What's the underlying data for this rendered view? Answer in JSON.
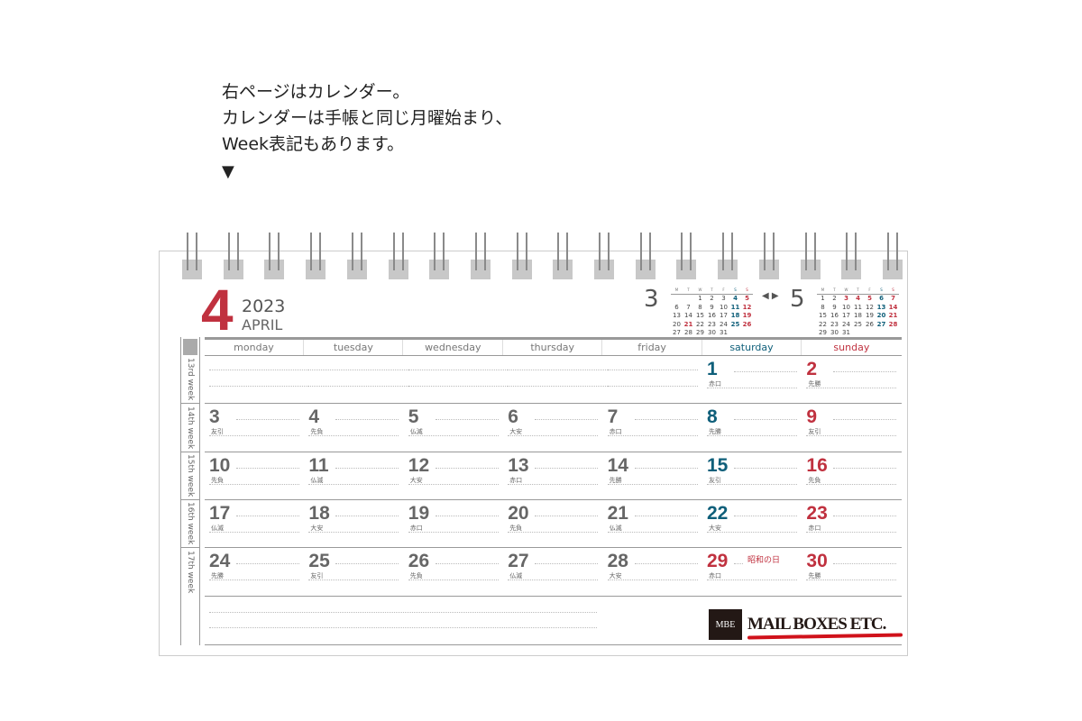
{
  "intro": {
    "lines": [
      "右ページはカレンダー。",
      "カレンダーは手帳と同じ月曜始まり、",
      "Week表記もあります。"
    ],
    "arrow": "▼"
  },
  "header": {
    "month": "4",
    "year": "2023",
    "month_name": "APRIL"
  },
  "colors": {
    "red": "#c0313f",
    "teal": "#0f5f7a",
    "gray": "#666666"
  },
  "mini": [
    {
      "month": "3",
      "days_head": [
        "M",
        "T",
        "W",
        "T",
        "F",
        "S",
        "S"
      ],
      "lead": 2,
      "count": 31,
      "sat": [
        4,
        11,
        18,
        25
      ],
      "red": [
        5,
        12,
        19,
        21,
        26
      ]
    },
    {
      "month": "5",
      "days_head": [
        "M",
        "T",
        "W",
        "T",
        "F",
        "S",
        "S"
      ],
      "lead": 0,
      "count": 31,
      "sat": [
        6,
        13,
        20,
        27
      ],
      "red": [
        3,
        4,
        5,
        7,
        14,
        21,
        28
      ]
    }
  ],
  "nav_arrows": "◀ ▶",
  "weekdays": [
    "monday",
    "tuesday",
    "wednesday",
    "thursday",
    "friday",
    "saturday",
    "sunday"
  ],
  "weeks": [
    "13rd week",
    "14th week",
    "15th week",
    "16th week",
    "17th week"
  ],
  "days": [
    {
      "d": "1",
      "r": "赤口"
    },
    {
      "d": "2",
      "r": "先勝"
    },
    {
      "d": "3",
      "r": "友引"
    },
    {
      "d": "4",
      "r": "先負"
    },
    {
      "d": "5",
      "r": "仏滅"
    },
    {
      "d": "6",
      "r": "大安"
    },
    {
      "d": "7",
      "r": "赤口"
    },
    {
      "d": "8",
      "r": "先勝"
    },
    {
      "d": "9",
      "r": "友引"
    },
    {
      "d": "10",
      "r": "先負"
    },
    {
      "d": "11",
      "r": "仏滅"
    },
    {
      "d": "12",
      "r": "大安"
    },
    {
      "d": "13",
      "r": "赤口"
    },
    {
      "d": "14",
      "r": "先勝"
    },
    {
      "d": "15",
      "r": "友引"
    },
    {
      "d": "16",
      "r": "先負"
    },
    {
      "d": "17",
      "r": "仏滅"
    },
    {
      "d": "18",
      "r": "大安"
    },
    {
      "d": "19",
      "r": "赤口"
    },
    {
      "d": "20",
      "r": "先負"
    },
    {
      "d": "21",
      "r": "仏滅"
    },
    {
      "d": "22",
      "r": "大安"
    },
    {
      "d": "23",
      "r": "赤口"
    },
    {
      "d": "24",
      "r": "先勝"
    },
    {
      "d": "25",
      "r": "友引"
    },
    {
      "d": "26",
      "r": "先負"
    },
    {
      "d": "27",
      "r": "仏滅"
    },
    {
      "d": "28",
      "r": "大安"
    },
    {
      "d": "29",
      "r": "赤口",
      "holiday": "昭和の日"
    },
    {
      "d": "30",
      "r": "先勝"
    }
  ],
  "first_weekday_index": 5,
  "logo": {
    "box": "MBE",
    "text": "MAIL BOXES ETC."
  }
}
